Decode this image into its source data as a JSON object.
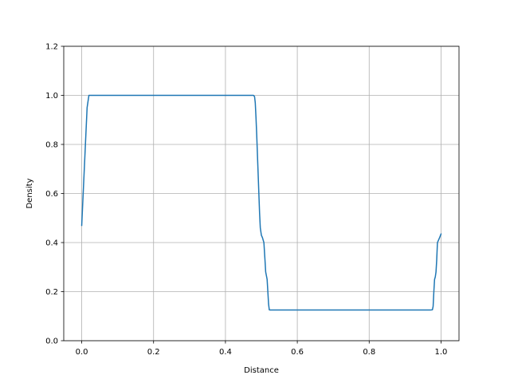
{
  "chart_data": {
    "type": "line",
    "title": "",
    "xlabel": "Distance",
    "ylabel": "Density",
    "xlim": [
      -0.05,
      1.05
    ],
    "ylim": [
      0.0,
      1.2
    ],
    "grid": true,
    "xticks": [
      0.0,
      0.2,
      0.4,
      0.6,
      0.8,
      1.0
    ],
    "xtick_labels": [
      "0.0",
      "0.2",
      "0.4",
      "0.6",
      "0.8",
      "1.0"
    ],
    "yticks": [
      0.0,
      0.2,
      0.4,
      0.6,
      0.8,
      1.0,
      1.2
    ],
    "ytick_labels": [
      "0.0",
      "0.2",
      "0.4",
      "0.6",
      "0.8",
      "1.0",
      "1.2"
    ],
    "series": [
      {
        "color": "#1f77b4",
        "x": [
          0.0,
          0.005,
          0.01,
          0.015,
          0.02,
          0.03,
          0.1,
          0.2,
          0.3,
          0.4,
          0.47,
          0.478,
          0.481,
          0.483,
          0.485,
          0.487,
          0.489,
          0.491,
          0.493,
          0.495,
          0.497,
          0.5,
          0.503,
          0.507,
          0.51,
          0.512,
          0.514,
          0.516,
          0.518,
          0.52,
          0.522,
          0.524,
          0.53,
          0.6,
          0.7,
          0.8,
          0.9,
          0.97,
          0.976,
          0.978,
          0.98,
          0.982,
          0.984,
          0.986,
          0.988,
          0.99,
          0.993,
          0.996,
          1.0
        ],
        "y": [
          0.47,
          0.63,
          0.79,
          0.95,
          1.0,
          1.0,
          1.0,
          1.0,
          1.0,
          1.0,
          1.0,
          1.0,
          0.995,
          0.97,
          0.91,
          0.84,
          0.76,
          0.68,
          0.6,
          0.52,
          0.46,
          0.43,
          0.42,
          0.4,
          0.33,
          0.28,
          0.265,
          0.25,
          0.2,
          0.15,
          0.126,
          0.125,
          0.125,
          0.125,
          0.125,
          0.125,
          0.125,
          0.125,
          0.126,
          0.14,
          0.2,
          0.25,
          0.26,
          0.28,
          0.33,
          0.4,
          0.41,
          0.42,
          0.435
        ]
      }
    ]
  }
}
